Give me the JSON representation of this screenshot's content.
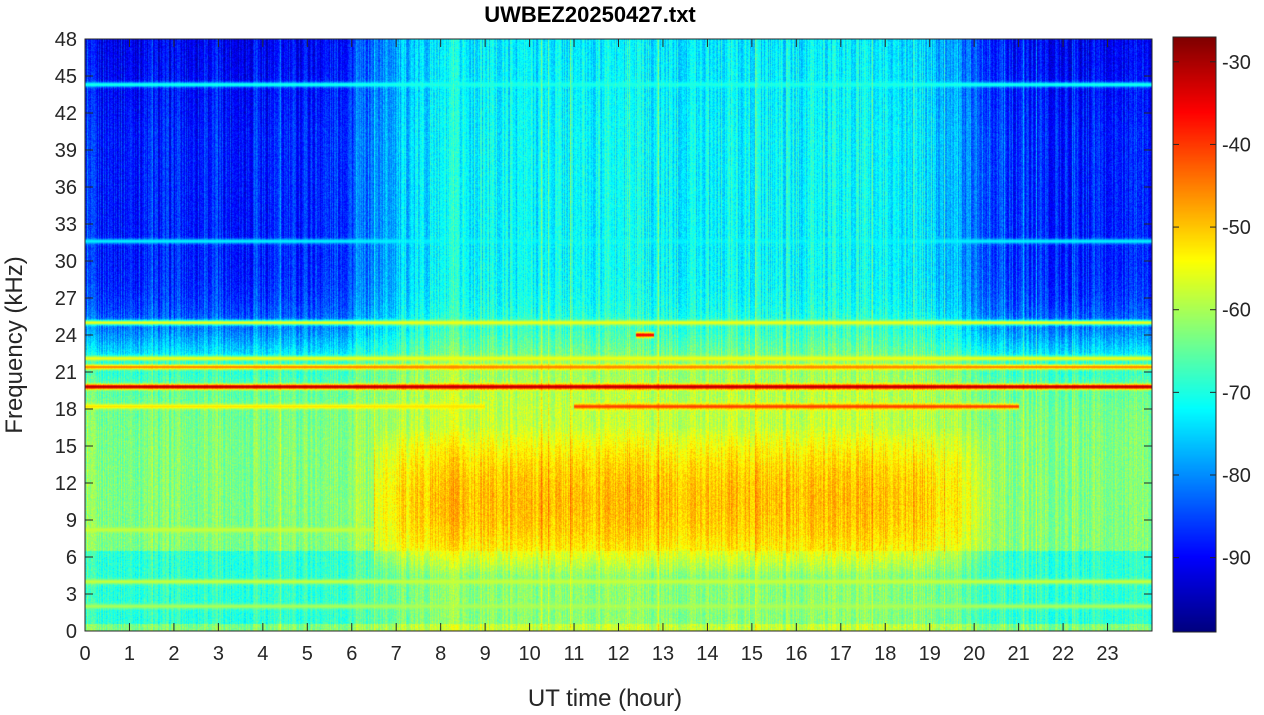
{
  "chart_data": {
    "type": "heatmap",
    "title": "UWBEZ20250427.txt",
    "xlabel": "UT time (hour)",
    "ylabel": "Frequency (kHz)",
    "xlim": [
      0,
      24
    ],
    "ylim": [
      0,
      48
    ],
    "x_ticks": [
      0,
      1,
      2,
      3,
      4,
      5,
      6,
      7,
      8,
      9,
      10,
      11,
      12,
      13,
      14,
      15,
      16,
      17,
      18,
      19,
      20,
      21,
      22,
      23
    ],
    "y_ticks": [
      0,
      3,
      6,
      9,
      12,
      15,
      18,
      21,
      24,
      27,
      30,
      33,
      36,
      39,
      42,
      45,
      48
    ],
    "colormap": "jet",
    "colorbar": {
      "range": [
        -99,
        -27
      ],
      "ticks": [
        -30,
        -40,
        -50,
        -60,
        -70,
        -80,
        -90
      ]
    },
    "background_level": {
      "low_freq_day": -58,
      "low_freq_night": -63,
      "high_freq_day": -72,
      "high_freq_night": -88
    },
    "features": [
      {
        "kind": "band",
        "f_start": 6,
        "f_end": 15,
        "t_start": 7,
        "t_end": 20,
        "peak_level": -48
      },
      {
        "kind": "line",
        "freq": 19.8,
        "t_start": 0,
        "t_end": 24,
        "level": -30
      },
      {
        "kind": "line",
        "freq": 18.2,
        "t_start": 11,
        "t_end": 21,
        "level": -40
      },
      {
        "kind": "line",
        "freq": 18.2,
        "t_start": 0,
        "t_end": 9,
        "level": -52
      },
      {
        "kind": "line",
        "freq": 21.4,
        "t_start": 0,
        "t_end": 24,
        "level": -45
      },
      {
        "kind": "line",
        "freq": 22.1,
        "t_start": 0,
        "t_end": 24,
        "level": -55
      },
      {
        "kind": "line",
        "freq": 25.0,
        "t_start": 0,
        "t_end": 24,
        "level": -55
      },
      {
        "kind": "line",
        "freq": 24.0,
        "t_start": 12.4,
        "t_end": 12.8,
        "level": -35
      },
      {
        "kind": "line",
        "freq": 44.3,
        "t_start": 0,
        "t_end": 24,
        "level": -70
      },
      {
        "kind": "line",
        "freq": 31.6,
        "t_start": 0,
        "t_end": 24,
        "level": -73
      },
      {
        "kind": "line",
        "freq": 4.0,
        "t_start": 0,
        "t_end": 24,
        "level": -58
      },
      {
        "kind": "line",
        "freq": 2.0,
        "t_start": 0,
        "t_end": 24,
        "level": -60
      },
      {
        "kind": "line",
        "freq": 8.2,
        "t_start": 0,
        "t_end": 7,
        "level": -58
      }
    ]
  }
}
